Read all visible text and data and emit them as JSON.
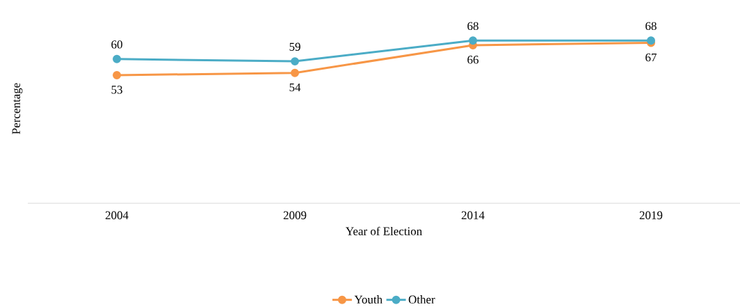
{
  "chart_data": {
    "type": "line",
    "xlabel": "Year of Election",
    "ylabel": "Percentage",
    "categories": [
      "2004",
      "2009",
      "2014",
      "2019"
    ],
    "series": [
      {
        "name": "Youth",
        "color": "#f79646",
        "values": [
          53,
          54,
          66,
          67
        ]
      },
      {
        "name": "Other",
        "color": "#4bacc6",
        "values": [
          60,
          59,
          68,
          68
        ]
      }
    ],
    "data_labels": true,
    "legend": "bottom",
    "marker": "circle",
    "line_style": "solid"
  }
}
